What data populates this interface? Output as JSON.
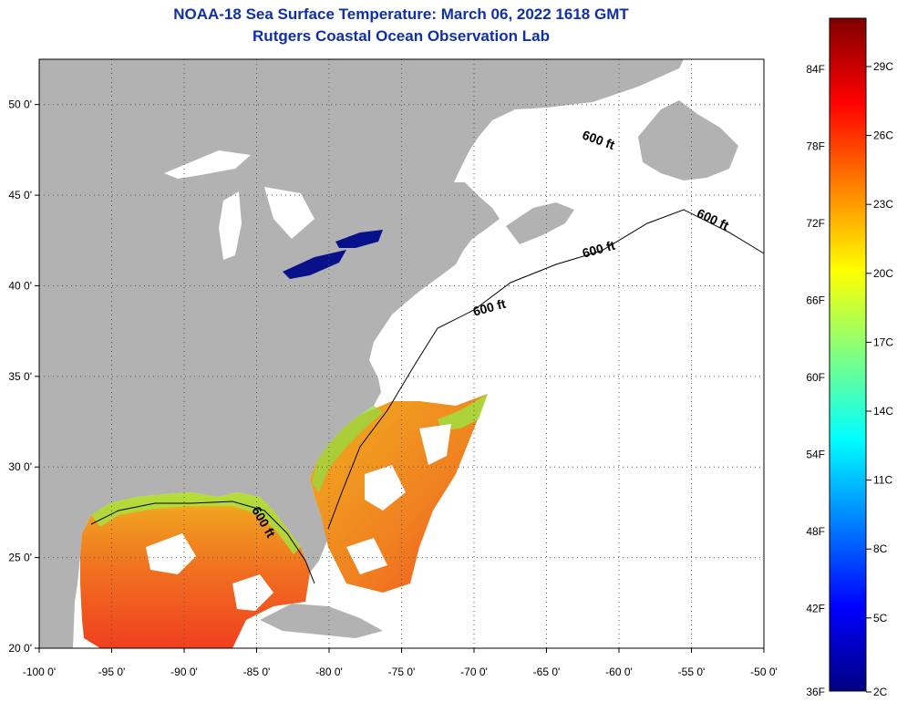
{
  "header": {
    "title": "NOAA-18 Sea Surface Temperature:  March 06, 2022 1618 GMT",
    "subtitle": "Rutgers Coastal Ocean Observation Lab"
  },
  "map": {
    "lon_range": [
      -100,
      -50
    ],
    "lat_range": [
      20,
      52.5
    ],
    "lon_ticks": [
      "-100 0'",
      "-95 0'",
      "-90 0'",
      "-85 0'",
      "-80 0'",
      "-75 0'",
      "-70 0'",
      "-65 0'",
      "-60 0'",
      "-55 0'",
      "-50 0'"
    ],
    "lat_ticks": [
      "20 0'",
      "25 0'",
      "30 0'",
      "35 0'",
      "40 0'",
      "45 0'",
      "50 0'"
    ],
    "land_color": "#b2b2b2",
    "no_data_color": "#ffffff",
    "lake_color": "#08108a",
    "isobath_labels": [
      "600 ft",
      "600 ft",
      "600 ft",
      "600 ft",
      "600 ft"
    ]
  },
  "colorbar": {
    "f_labels": [
      "84F",
      "78F",
      "72F",
      "66F",
      "60F",
      "54F",
      "48F",
      "42F",
      "36F"
    ],
    "c_labels": [
      "29C",
      "26C",
      "23C",
      "20C",
      "17C",
      "14C",
      "11C",
      "8C",
      "5C",
      "2C"
    ],
    "colors": [
      "#800000",
      "#ff0000",
      "#ff8000",
      "#ffff00",
      "#80ff80",
      "#00ffff",
      "#0080ff",
      "#0000ff",
      "#000080"
    ]
  }
}
